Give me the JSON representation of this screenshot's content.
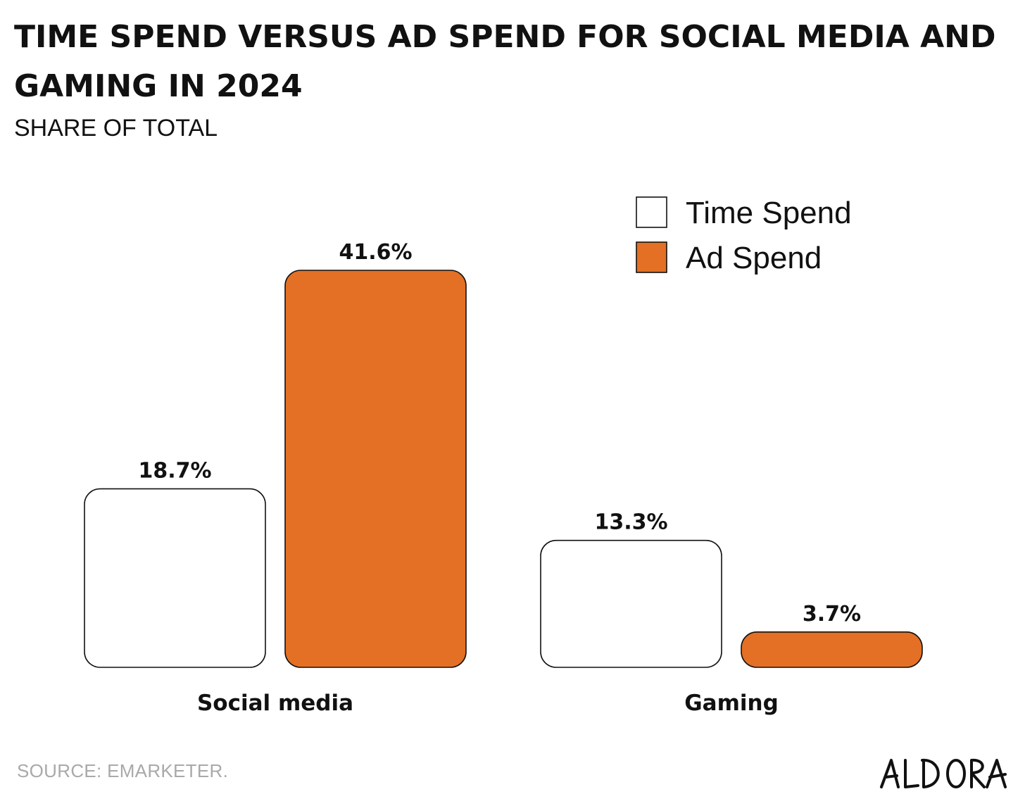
{
  "header": {
    "title": "TIME SPEND VERSUS AD SPEND FOR SOCIAL MEDIA AND GAMING IN 2024",
    "subtitle": "SHARE OF TOTAL"
  },
  "footer": {
    "source": "SOURCE: EMARKETER.",
    "logo": "ALDORA"
  },
  "colors": {
    "time_spend": "#ffffff",
    "ad_spend": "#e37024",
    "outline": "#111111"
  },
  "chart_data": {
    "type": "bar",
    "title": "TIME SPEND VERSUS AD SPEND FOR SOCIAL MEDIA AND GAMING IN 2024",
    "subtitle": "SHARE OF TOTAL",
    "categories": [
      "Social media",
      "Gaming"
    ],
    "series": [
      {
        "name": "Time Spend",
        "values": [
          18.7,
          13.3
        ],
        "labels": [
          "18.7%",
          "13.3%"
        ]
      },
      {
        "name": "Ad Spend",
        "values": [
          41.6,
          3.7
        ],
        "labels": [
          "41.6%",
          "3.7%"
        ]
      }
    ],
    "ylim": [
      0,
      41.6
    ],
    "legend": "top-right",
    "grid": false
  }
}
